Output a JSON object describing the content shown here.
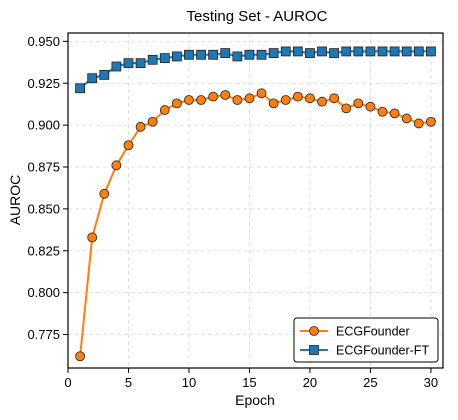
{
  "chart_data": {
    "type": "line",
    "title": "Testing Set - AUROC",
    "xlabel": "Epoch",
    "ylabel": "AUROC",
    "xlim": [
      0,
      31
    ],
    "ylim": [
      0.755,
      0.955
    ],
    "xticks": [
      0,
      5,
      10,
      15,
      20,
      25,
      30
    ],
    "yticks": [
      0.775,
      0.8,
      0.825,
      0.85,
      0.875,
      0.9,
      0.925,
      0.95
    ],
    "xtick_labels": [
      "0",
      "5",
      "10",
      "15",
      "20",
      "25",
      "30"
    ],
    "ytick_labels": [
      "0.775",
      "0.800",
      "0.825",
      "0.850",
      "0.875",
      "0.900",
      "0.925",
      "0.950"
    ],
    "grid": true,
    "legend_position": "bottom-right",
    "x": [
      1,
      2,
      3,
      4,
      5,
      6,
      7,
      8,
      9,
      10,
      11,
      12,
      13,
      14,
      15,
      16,
      17,
      18,
      19,
      20,
      21,
      22,
      23,
      24,
      25,
      26,
      27,
      28,
      29,
      30
    ],
    "series": [
      {
        "name": "ECGFounder",
        "color": "#ff7f0e",
        "marker": "circle",
        "values": [
          0.762,
          0.833,
          0.859,
          0.876,
          0.888,
          0.899,
          0.902,
          0.909,
          0.913,
          0.915,
          0.915,
          0.917,
          0.918,
          0.915,
          0.916,
          0.919,
          0.913,
          0.915,
          0.917,
          0.916,
          0.914,
          0.916,
          0.91,
          0.913,
          0.911,
          0.908,
          0.907,
          0.904,
          0.901,
          0.902
        ]
      },
      {
        "name": "ECGFounder-FT",
        "color": "#1f77b4",
        "marker": "square",
        "values": [
          0.922,
          0.928,
          0.93,
          0.935,
          0.937,
          0.937,
          0.939,
          0.94,
          0.941,
          0.942,
          0.942,
          0.942,
          0.943,
          0.941,
          0.942,
          0.942,
          0.943,
          0.944,
          0.944,
          0.943,
          0.944,
          0.943,
          0.944,
          0.944,
          0.944,
          0.944,
          0.944,
          0.944,
          0.944,
          0.944
        ]
      }
    ]
  }
}
